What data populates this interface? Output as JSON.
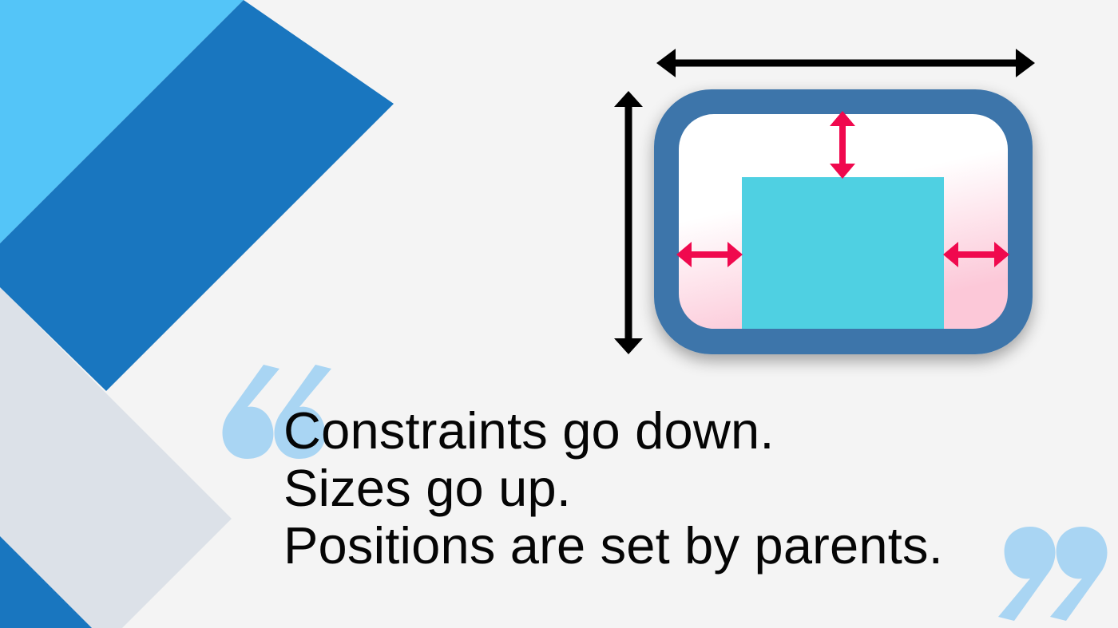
{
  "quote": {
    "lines": [
      "Constraints go down.",
      "Sizes go up.",
      "Positions are set by parents."
    ]
  },
  "decorations": {
    "open_quote_mark": "open-quote-icon",
    "close_quote_mark": "close-quote-icon"
  },
  "colors": {
    "background": "#f4f4f4",
    "light_blue": "#54c5f8",
    "dark_blue": "#1976bf",
    "gray_panel": "#dce1e8",
    "container_border": "#3c74aa",
    "child_box": "#4fd0e2",
    "padding_arrow": "#f0094e",
    "constraint_arrow": "#000000",
    "quote_mark": "#a9d5f3",
    "text": "#050505"
  },
  "icons": {
    "width_constraint": "double-arrow-horizontal-icon",
    "height_constraint": "double-arrow-vertical-icon",
    "padding_indicator": "double-arrow-pink-icon"
  }
}
